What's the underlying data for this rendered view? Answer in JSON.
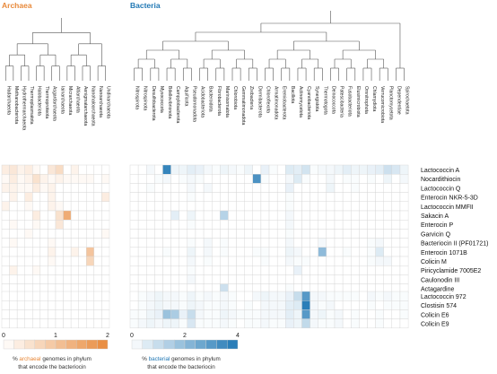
{
  "chart_data": {
    "type": "heatmap",
    "domains": [
      {
        "key": "archaea",
        "title": "Archaea",
        "color": "#e8893a",
        "phyla": [
          "Hadarchaeota",
          "Methanobacteriota",
          "Hydrothermarchaeota",
          "Thermoplasmatota",
          "Halobacteriota",
          "Thermoproteota",
          "Asgardarchaeota",
          "Iainarchaeota",
          "Micrarchaeota",
          "Altiarchaeota",
          "Aenigmatarchaeota",
          "Nanohaloarchaeota",
          "Nanoarchaeota",
          "Undinarchaeota"
        ],
        "scale": {
          "min": 0,
          "max": 2,
          "ticks": [
            "0",
            "1",
            "2"
          ]
        },
        "legend_caption": [
          "% archaeal genomes in phylum",
          "that encode the bacteriocin"
        ],
        "legend_highlight": "archaeal"
      },
      {
        "key": "bacteria",
        "title": "Bacteria",
        "color": "#1f77b4",
        "phyla": [
          "Nitrospirota",
          "Nitrospinota",
          "Desulfobacterota",
          "Myxococcota",
          "Bdellovibrionota",
          "Campylobacterota",
          "Aquificota",
          "Pseudomonadota",
          "Acidobacteriota",
          "Bacteroidota",
          "Fibrobacterota",
          "Marinisomatota",
          "Chlorobiota",
          "Gemmatimonadota",
          "Zixibacteria",
          "Dormibacterota",
          "Chloroflexota",
          "Armatimonadota",
          "Eremiobacterota",
          "Bacillota",
          "Actinomycetota",
          "Cyanobacteriota",
          "Synergistota",
          "Thermotogota",
          "Deinococcota",
          "Patescibacteria",
          "Fusobacteriota",
          "Elusimicrobiota",
          "Omnitrophota",
          "Chlamydiota",
          "Verrucomicrobiota",
          "Planctomycetota",
          "Dependentiae",
          "Spirochaetota"
        ],
        "scale": {
          "min": 0,
          "max": 4,
          "ticks": [
            "0",
            "2",
            "4"
          ]
        },
        "legend_caption": [
          "% bacterial genomes in phylum",
          "that encode the bacteriocin"
        ],
        "legend_highlight": "bacterial"
      }
    ],
    "bacteriocin_groups": [
      [
        "Lactococcin A",
        "Nocardithiocin",
        "Lactococcin Q",
        "Enterocin NKR-5-3D",
        "Lactococcin MMFII",
        "Sakacin A",
        "Enterocin P",
        "Garvicin Q",
        "Bacteriocin II (PF01721)",
        "Enterocin 1071B",
        "Colicin M",
        "Piricyclamide 7005E2",
        "Caulonodin III",
        "Actagardine"
      ],
      [
        "Lactococcin 972",
        "Clostisin 574",
        "Colicin E6",
        "Colicin E9"
      ]
    ],
    "archaea_values": [
      [
        0.3,
        0.4,
        0.2,
        0.3,
        0.1,
        0,
        0.4,
        0.6,
        0,
        0.2,
        0,
        0,
        0,
        0
      ],
      [
        0.1,
        0.3,
        0.1,
        0.2,
        0.5,
        0.2,
        0.1,
        0.2,
        0.1,
        0.1,
        0.1,
        0.1,
        0,
        0.1
      ],
      [
        0.2,
        0.2,
        0.1,
        0.1,
        0.3,
        0.1,
        0.2,
        0,
        0,
        0,
        0,
        0,
        0,
        0
      ],
      [
        0,
        0.2,
        0,
        0.3,
        0,
        0,
        0.2,
        0,
        0,
        0,
        0,
        0,
        0,
        0.3
      ],
      [
        0.2,
        0,
        0,
        0.1,
        0,
        0,
        0.2,
        0.1,
        0,
        0,
        0,
        0,
        0,
        0
      ],
      [
        0,
        0,
        0,
        0,
        0.3,
        0,
        0,
        0.5,
        1.4,
        0,
        0,
        0,
        0,
        0
      ],
      [
        0,
        0.1,
        0,
        0,
        0.1,
        0,
        0,
        0.4,
        0,
        0,
        0,
        0,
        0,
        0
      ],
      [
        0,
        0,
        0,
        0.1,
        0,
        0,
        0,
        0,
        0,
        0,
        0,
        0,
        0,
        0.1
      ],
      [
        0,
        0.1,
        0,
        0,
        0,
        0,
        0.1,
        0,
        0,
        0,
        0,
        0,
        0,
        0
      ],
      [
        0,
        0,
        0,
        0,
        0,
        0,
        0.2,
        0,
        0,
        0.2,
        0,
        1.0,
        0,
        0
      ],
      [
        0,
        0,
        0,
        0,
        0,
        0,
        0.1,
        0,
        0,
        0,
        0,
        0.7,
        0,
        0
      ],
      [
        0,
        0.2,
        0,
        0,
        0.1,
        0,
        0,
        0,
        0,
        0,
        0,
        0,
        0,
        0
      ],
      [
        0,
        0,
        0,
        0,
        0,
        0,
        0,
        0,
        0,
        0,
        0,
        0,
        0,
        0
      ],
      [
        0,
        0,
        0,
        0,
        0,
        0,
        0,
        0,
        0,
        0,
        0,
        0,
        0,
        0
      ],
      [
        0,
        0,
        0,
        0,
        0,
        0,
        0,
        0,
        0,
        0,
        0,
        0,
        0,
        0
      ],
      [
        0,
        0,
        0,
        0,
        0,
        0,
        0,
        0,
        0,
        0,
        0,
        0,
        0,
        0
      ],
      [
        0,
        0,
        0,
        0,
        0,
        0,
        0,
        0,
        0,
        0,
        0,
        0,
        0,
        0
      ],
      [
        0,
        0,
        0,
        0,
        0,
        0,
        0,
        0,
        0,
        0,
        0,
        0,
        0,
        0
      ]
    ],
    "bacteria_values": [
      [
        0,
        0,
        0.2,
        0,
        3.6,
        0.3,
        0.3,
        0.5,
        0.4,
        0.2,
        0.1,
        0.3,
        0.2,
        0.1,
        0.3,
        0,
        0.4,
        0.1,
        0,
        0.6,
        0.5,
        0.8,
        0.1,
        0.2,
        0.2,
        0.3,
        0.5,
        0.3,
        0.3,
        0.4,
        0.5,
        0.9,
        0.7,
        0.3
      ],
      [
        0,
        0,
        0,
        0.1,
        0.2,
        0,
        0.1,
        0.2,
        0.1,
        0,
        0,
        0,
        0,
        0,
        0,
        3.2,
        0.1,
        0,
        0,
        0.2,
        0.6,
        0.1,
        0,
        0,
        0.2,
        0,
        0.1,
        0.1,
        0,
        0.1,
        0,
        0.3,
        0,
        0.2
      ],
      [
        0,
        0,
        0.1,
        0,
        0,
        0,
        0,
        0.2,
        0,
        0.2,
        0,
        0,
        0,
        0,
        0,
        0,
        0,
        0,
        0,
        0.4,
        0,
        0,
        0,
        0,
        0.3,
        0,
        0,
        0.1,
        0,
        0,
        0,
        0,
        0,
        0
      ],
      [
        0,
        0,
        0,
        0,
        0,
        0,
        0,
        0.1,
        0,
        0,
        0,
        0,
        0,
        0,
        0,
        0,
        0,
        0,
        0,
        0.1,
        0,
        0,
        0,
        0,
        0,
        0,
        0,
        0,
        0,
        0,
        0,
        0,
        0,
        0
      ],
      [
        0,
        0,
        0,
        0,
        0,
        0,
        0,
        0,
        0,
        0,
        0,
        0,
        0,
        0,
        0,
        0,
        0,
        0,
        0,
        0.1,
        0,
        0,
        0,
        0,
        0,
        0,
        0,
        0,
        0,
        0,
        0,
        0,
        0,
        0
      ],
      [
        0,
        0,
        0,
        0,
        0,
        0.5,
        0,
        0.3,
        0,
        0,
        0,
        1.3,
        0,
        0,
        0,
        0,
        0,
        0,
        0,
        0.2,
        0,
        0,
        0,
        0,
        0,
        0,
        0,
        0,
        0,
        0,
        0,
        0,
        0,
        0
      ],
      [
        0,
        0,
        0,
        0,
        0,
        0,
        0,
        0.1,
        0,
        0,
        0,
        0,
        0,
        0,
        0,
        0,
        0,
        0,
        0,
        0.2,
        0,
        0,
        0,
        0,
        0,
        0,
        0,
        0,
        0,
        0,
        0,
        0,
        0,
        0
      ],
      [
        0,
        0,
        0,
        0,
        0,
        0,
        0,
        0,
        0,
        0,
        0,
        0,
        0,
        0,
        0,
        0,
        0,
        0,
        0,
        0.1,
        0,
        0,
        0,
        0,
        0,
        0,
        0,
        0,
        0,
        0,
        0,
        0,
        0,
        0
      ],
      [
        0,
        0,
        0,
        0,
        0,
        0,
        0,
        0.1,
        0,
        0.2,
        0,
        0.1,
        0,
        0,
        0,
        0,
        0,
        0,
        0,
        0.2,
        0,
        0,
        0,
        0.2,
        0,
        0,
        0,
        0,
        0,
        0.1,
        0.2,
        0,
        0,
        0
      ],
      [
        0,
        0,
        0,
        0,
        0.1,
        0,
        0,
        0.3,
        0,
        0.2,
        0,
        0.1,
        0,
        0,
        0,
        0.1,
        0.1,
        0,
        0,
        0.3,
        0.2,
        0,
        0,
        2.0,
        0,
        0,
        0.1,
        0,
        0,
        0.1,
        0.6,
        0,
        0,
        0
      ],
      [
        0,
        0,
        0,
        0,
        0,
        0,
        0,
        0.2,
        0,
        0.1,
        0,
        0,
        0,
        0,
        0,
        0,
        0.1,
        0,
        0,
        0.2,
        0.1,
        0.1,
        0,
        0,
        0,
        0,
        0,
        0,
        0,
        0.1,
        0.2,
        0.2,
        0,
        0
      ],
      [
        0,
        0,
        0,
        0,
        0,
        0,
        0,
        0.1,
        0,
        0,
        0,
        0,
        0,
        0,
        0,
        0,
        0,
        0,
        0,
        0,
        0.4,
        0,
        0,
        0,
        0,
        0,
        0,
        0,
        0,
        0,
        0,
        0,
        0,
        0
      ],
      [
        0,
        0,
        0,
        0,
        0,
        0,
        0,
        0.2,
        0,
        0,
        0,
        0,
        0,
        0,
        0,
        0,
        0,
        0,
        0,
        0,
        0,
        0,
        0,
        0,
        0,
        0,
        0,
        0,
        0,
        0,
        0,
        0,
        0,
        0
      ],
      [
        0,
        0,
        0,
        0,
        0,
        0,
        0,
        0,
        0,
        0,
        0,
        0.9,
        0,
        0,
        0,
        0,
        0,
        0,
        0,
        0.1,
        0,
        0,
        0,
        0,
        0,
        0,
        0,
        0,
        0,
        0,
        0,
        0,
        0,
        0
      ],
      [
        0,
        0.1,
        0.2,
        0.3,
        0.2,
        0.2,
        0.1,
        0.3,
        0.1,
        0.2,
        0.1,
        0.2,
        0.1,
        0,
        0,
        0.2,
        0.3,
        0.2,
        0.2,
        0.4,
        1.0,
        3.0,
        0.2,
        0.2,
        0.1,
        0.1,
        0.1,
        0.1,
        0,
        0.2,
        0.1,
        0.2,
        0.1,
        0.1
      ],
      [
        0,
        0.1,
        0.2,
        0.3,
        0.2,
        0.2,
        0.1,
        0.3,
        0.2,
        0.1,
        0.1,
        0.2,
        0.1,
        0,
        0.1,
        0,
        0.2,
        0.2,
        0.2,
        0.5,
        0.6,
        3.8,
        0.2,
        0.1,
        0.2,
        0,
        0,
        0,
        0,
        0.1,
        0,
        0.1,
        0.1,
        0.1
      ],
      [
        0.1,
        0.1,
        0.3,
        0.4,
        1.8,
        1.5,
        0.4,
        1.0,
        0.2,
        0.1,
        0.1,
        0.3,
        0.2,
        0.1,
        0.1,
        0.1,
        0.2,
        0.2,
        0.2,
        0.5,
        0.3,
        3.0,
        0.2,
        0.3,
        0.1,
        0.2,
        0,
        0.1,
        0,
        0,
        0.1,
        0,
        0,
        0.1
      ],
      [
        0.1,
        0.2,
        0.3,
        0.2,
        0.3,
        0.3,
        0.1,
        0.7,
        0.1,
        0.1,
        0.1,
        0.2,
        0.1,
        0,
        0.1,
        0.1,
        0.2,
        0.1,
        0.1,
        0.4,
        0.3,
        1.1,
        0.2,
        0.1,
        0.1,
        0.2,
        0,
        0.1,
        0,
        0,
        0.1,
        0,
        0,
        0
      ]
    ]
  }
}
